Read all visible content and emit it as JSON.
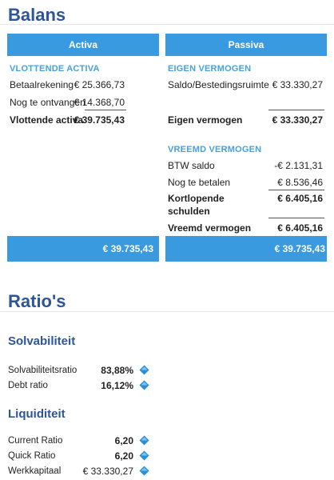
{
  "balans": {
    "title": "Balans",
    "activa_header": "Activa",
    "passiva_header": "Passiva",
    "vlottende_activa": {
      "section": "VLOTTENDE ACTIVA",
      "rows": [
        {
          "label": "Betaalrekening",
          "value": "€ 25.366,73"
        },
        {
          "label": "Nog te ontvangen",
          "value": "€ 14.368,70"
        }
      ],
      "total_label": "Vlottende activa",
      "total_value": "€ 39.735,43"
    },
    "eigen_vermogen": {
      "section": "EIGEN VERMOGEN",
      "rows": [
        {
          "label": "Saldo/Bestedingsruimte",
          "value": "€ 33.330,27"
        }
      ],
      "total_label": "Eigen vermogen",
      "total_value": "€ 33.330,27"
    },
    "vreemd_vermogen": {
      "section": "VREEMD VERMOGEN",
      "rows": [
        {
          "label": "BTW saldo",
          "value": "-€ 2.131,31"
        },
        {
          "label": "Nog te betalen",
          "value": "€ 8.536,46"
        }
      ],
      "kortlopende_label_1": "Kortlopende",
      "kortlopende_label_2": "schulden",
      "kortlopende_value": "€ 6.405,16",
      "total_label": "Vreemd vermogen",
      "total_value": "€ 6.405,16"
    },
    "activa_total": "€ 39.735,43",
    "passiva_total": "€ 39.735,43"
  },
  "ratios": {
    "title": "Ratio's",
    "solvabiliteit": {
      "heading": "Solvabiliteit",
      "rows": [
        {
          "label": "Solvabiliteitsratio",
          "value": "83,88%"
        },
        {
          "label": "Debt ratio",
          "value": "16,12%"
        }
      ]
    },
    "liquiditeit": {
      "heading": "Liquiditeit",
      "rows": [
        {
          "label": "Current Ratio",
          "value": "6,20"
        },
        {
          "label": "Quick Ratio",
          "value": "6,20"
        },
        {
          "label": "Werkkapitaal",
          "value": "€ 33.330,27"
        }
      ]
    }
  },
  "colors": {
    "heading": "#2e5597",
    "bar": "#3a9ae0",
    "section": "#45a2dc",
    "info_icon": "#2b8fd6"
  },
  "icons": {
    "info": "info-diamond-icon"
  }
}
